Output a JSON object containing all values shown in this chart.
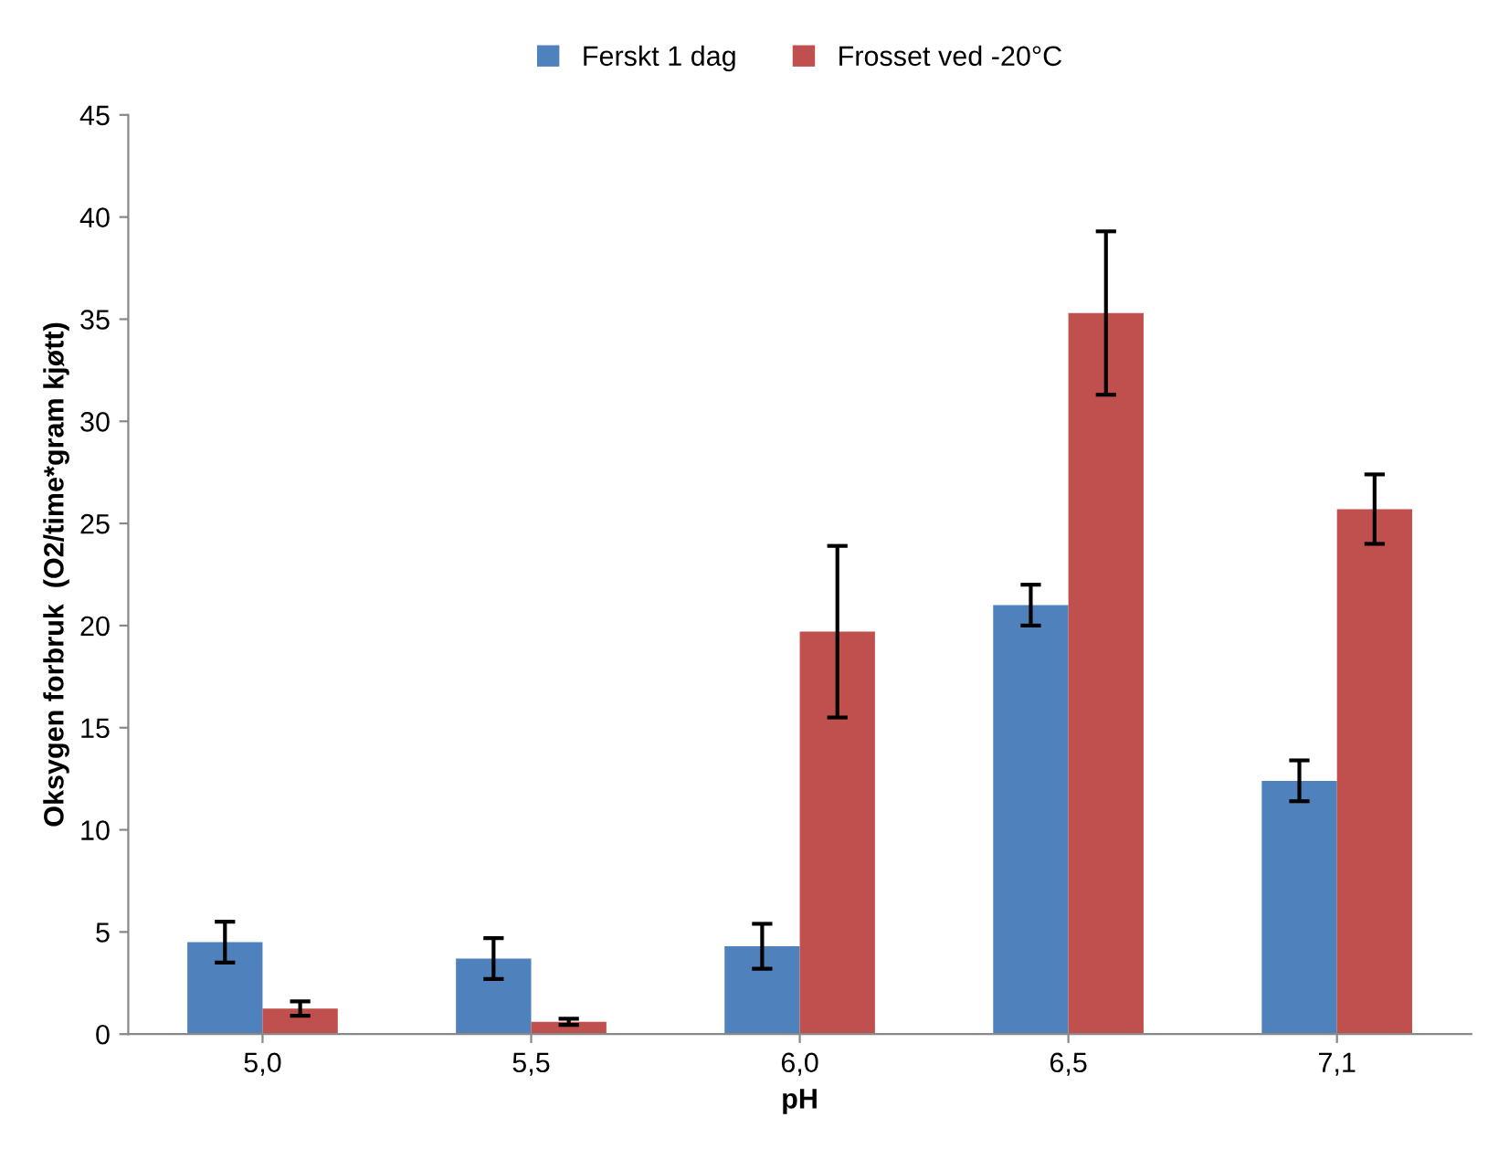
{
  "chart_data": {
    "type": "bar",
    "xlabel": "pH",
    "ylabel": "Oksygen forbruk  (O2/time*gram kjøtt)",
    "categories": [
      "5,0",
      "5,5",
      "6,0",
      "6,5",
      "7,1"
    ],
    "series": [
      {
        "name": "Ferskt 1 dag",
        "color": "#4f81bd",
        "values": [
          4.5,
          3.7,
          4.3,
          21.0,
          12.4
        ],
        "errors": [
          1.0,
          1.0,
          1.1,
          1.0,
          1.0
        ]
      },
      {
        "name": "Frosset ved -20°C",
        "color": "#c0504d",
        "values": [
          1.25,
          0.6,
          19.7,
          35.3,
          25.7
        ],
        "errors": [
          0.35,
          0.15,
          4.2,
          4.0,
          1.7
        ]
      }
    ],
    "ylim": [
      0,
      45
    ],
    "yticks": [
      0,
      5,
      10,
      15,
      20,
      25,
      30,
      35,
      40,
      45
    ],
    "grid": false,
    "legend": "top"
  }
}
